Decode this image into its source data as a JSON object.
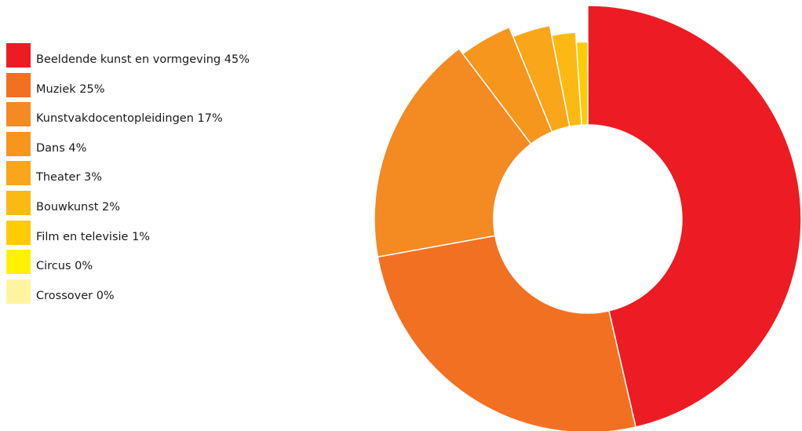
{
  "chart_data": {
    "type": "pie",
    "title": "",
    "legend_position": "left",
    "slices": [
      {
        "label": "Beeldende kunst en vormgeving 45%",
        "name": "Beeldende kunst en vormgeving",
        "value": 45,
        "color": "#ED1C24"
      },
      {
        "label": "Muziek 25%",
        "name": "Muziek",
        "value": 25,
        "color": "#F27022"
      },
      {
        "label": "Kunstvakdocentopleidingen 17%",
        "name": "Kunstvakdocentopleidingen",
        "value": 17,
        "color": "#F38A22"
      },
      {
        "label": "Dans 4%",
        "name": "Dans",
        "value": 4,
        "color": "#F7961D"
      },
      {
        "label": "Theater 3%",
        "name": "Theater",
        "value": 3,
        "color": "#FAA61A"
      },
      {
        "label": "Bouwkunst 2%",
        "name": "Bouwkunst",
        "value": 2,
        "color": "#FDB913"
      },
      {
        "label": "Film en televisie 1%",
        "name": "Film en televisie",
        "value": 1,
        "color": "#FFCB05"
      },
      {
        "label": "Circus 0%",
        "name": "Circus",
        "value": 0,
        "color": "#FFF200"
      },
      {
        "label": "Crossover 0%",
        "name": "Crossover",
        "value": 0,
        "color": "#FFF5A0"
      }
    ]
  }
}
